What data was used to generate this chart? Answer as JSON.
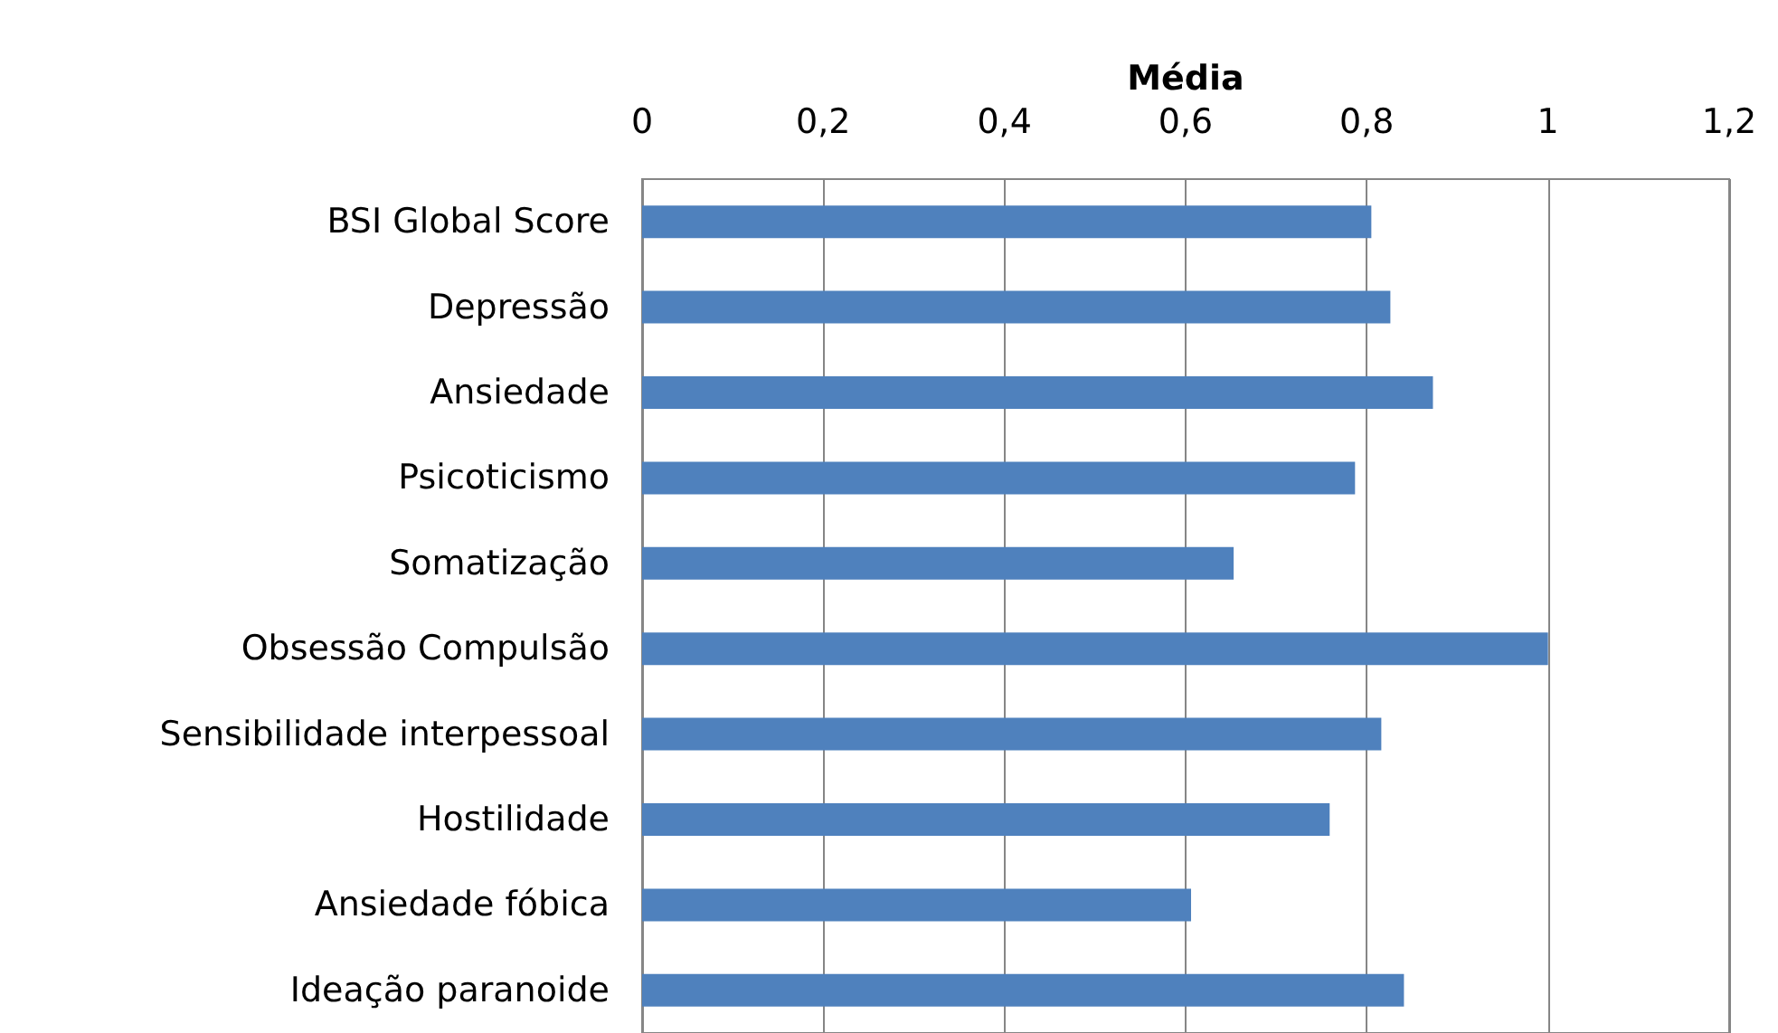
{
  "chart_data": {
    "type": "bar",
    "orientation": "horizontal",
    "xlabel": "Média",
    "categories": [
      "BSI Global Score",
      "Depressão",
      "Ansiedade",
      "Psicoticismo",
      "Somatização",
      "Obsessão Compulsão",
      "Sensibilidade interpessoal",
      "Hostilidade",
      "Ansiedade fóbica",
      "Ideação paranoide"
    ],
    "values": [
      0.805,
      0.826,
      0.873,
      0.787,
      0.653,
      1.0,
      0.816,
      0.759,
      0.606,
      0.841
    ],
    "color": "#4f81bd",
    "xlim": [
      0,
      1.2
    ],
    "xticks": [
      0,
      {
        "value": 0.2,
        "label": "0,2"
      },
      {
        "value": 0.4,
        "label": "0,4"
      },
      {
        "value": 0.6,
        "label": "0,6"
      },
      {
        "value": 0.8,
        "label": "0,8"
      },
      1,
      {
        "value": 1.2,
        "label": "1,2"
      }
    ],
    "grid": "x"
  }
}
